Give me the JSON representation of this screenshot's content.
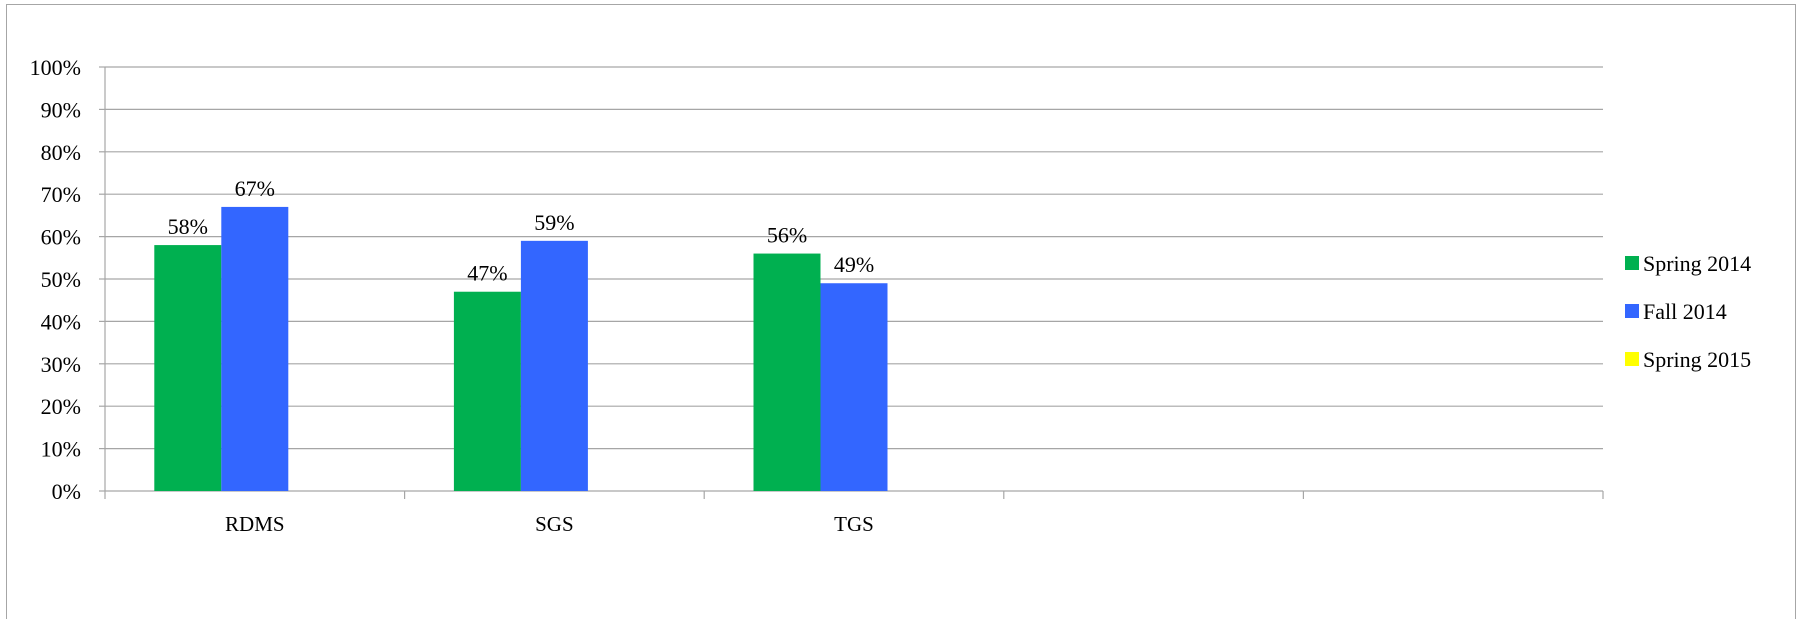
{
  "chart_data": {
    "type": "bar",
    "categories": [
      "RDMS",
      "SGS",
      "TGS",
      "",
      ""
    ],
    "series": [
      {
        "name": "Spring 2014",
        "color": "#00b050",
        "values": [
          58,
          47,
          56,
          null,
          null
        ]
      },
      {
        "name": "Fall 2014",
        "color": "#3366ff",
        "values": [
          67,
          59,
          49,
          null,
          null
        ]
      },
      {
        "name": "Spring 2015",
        "color": "#ffff00",
        "values": [
          null,
          null,
          null,
          null,
          null
        ]
      }
    ],
    "yticks": [
      "0%",
      "10%",
      "20%",
      "30%",
      "40%",
      "50%",
      "60%",
      "70%",
      "80%",
      "90%",
      "100%"
    ],
    "ylim": [
      0,
      100
    ],
    "value_suffix": "%",
    "grid": true,
    "legend_position": "right",
    "gridline_color": "#a6a6a6",
    "axis_color": "#a6a6a6"
  }
}
